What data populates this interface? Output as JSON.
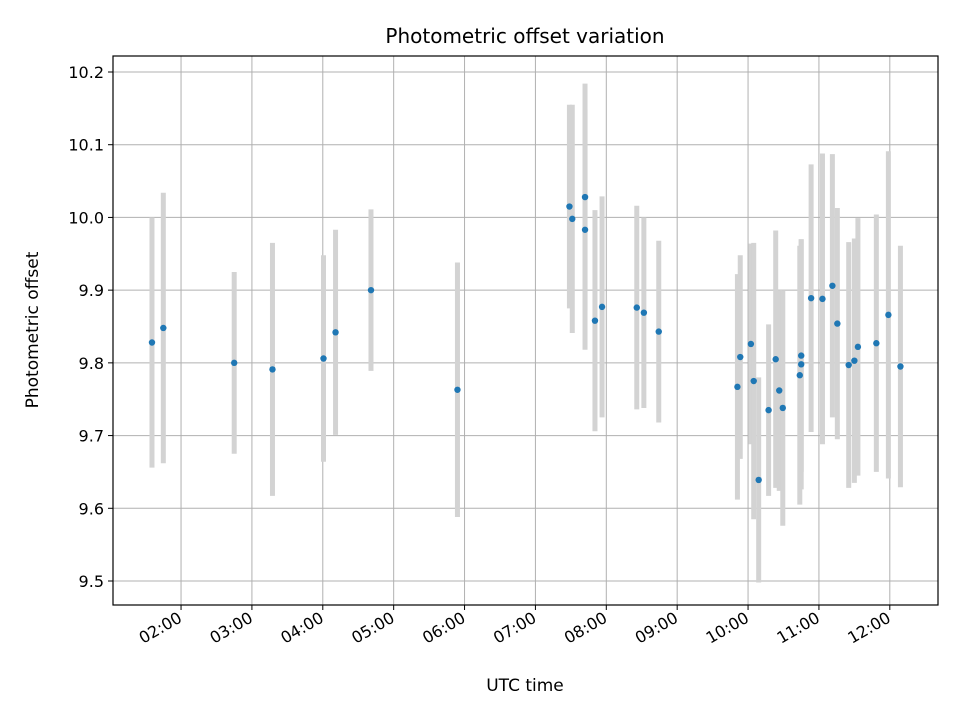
{
  "chart_data": {
    "type": "scatter",
    "title": "Photometric offset variation",
    "xlabel": "UTC time",
    "ylabel": "Photometric offset",
    "x_unit": "hours (UTC time of day)",
    "xlim": [
      1.04,
      12.68
    ],
    "ylim": [
      9.467,
      10.222
    ],
    "x_ticks": [
      2,
      3,
      4,
      5,
      6,
      7,
      8,
      9,
      10,
      11,
      12
    ],
    "x_tick_labels": [
      "02:00",
      "03:00",
      "04:00",
      "05:00",
      "06:00",
      "07:00",
      "08:00",
      "09:00",
      "10:00",
      "11:00",
      "12:00"
    ],
    "y_ticks": [
      9.5,
      9.6,
      9.7,
      9.8,
      9.9,
      10.0,
      10.1,
      10.2
    ],
    "y_tick_labels": [
      "9.5",
      "9.6",
      "9.7",
      "9.8",
      "9.9",
      "10.0",
      "10.1",
      "10.2"
    ],
    "grid": true,
    "colors": {
      "point": "#1f77b4",
      "errorbar": "#d3d3d3",
      "grid": "#b0b0b0"
    },
    "points": [
      {
        "x": 1.59,
        "y": 9.828,
        "err": 0.172
      },
      {
        "x": 1.75,
        "y": 9.848,
        "err": 0.186
      },
      {
        "x": 2.75,
        "y": 9.8,
        "err": 0.125
      },
      {
        "x": 3.29,
        "y": 9.791,
        "err": 0.174
      },
      {
        "x": 4.01,
        "y": 9.806,
        "err": 0.142
      },
      {
        "x": 4.18,
        "y": 9.842,
        "err": 0.141
      },
      {
        "x": 4.68,
        "y": 9.9,
        "err": 0.111
      },
      {
        "x": 5.9,
        "y": 9.763,
        "err": 0.175
      },
      {
        "x": 7.48,
        "y": 10.015,
        "err": 0.14
      },
      {
        "x": 7.52,
        "y": 9.998,
        "err": 0.157
      },
      {
        "x": 7.7,
        "y": 10.028,
        "err": 0.156
      },
      {
        "x": 7.7,
        "y": 9.983,
        "err": 0.165
      },
      {
        "x": 7.84,
        "y": 9.858,
        "err": 0.152
      },
      {
        "x": 7.94,
        "y": 9.877,
        "err": 0.152
      },
      {
        "x": 8.43,
        "y": 9.876,
        "err": 0.14
      },
      {
        "x": 8.53,
        "y": 9.869,
        "err": 0.131
      },
      {
        "x": 8.74,
        "y": 9.843,
        "err": 0.125
      },
      {
        "x": 9.85,
        "y": 9.767,
        "err": 0.155
      },
      {
        "x": 9.89,
        "y": 9.808,
        "err": 0.14
      },
      {
        "x": 10.04,
        "y": 9.826,
        "err": 0.138
      },
      {
        "x": 10.08,
        "y": 9.775,
        "err": 0.19
      },
      {
        "x": 10.15,
        "y": 9.639,
        "err": 0.141
      },
      {
        "x": 10.29,
        "y": 9.735,
        "err": 0.118
      },
      {
        "x": 10.39,
        "y": 9.805,
        "err": 0.177
      },
      {
        "x": 10.44,
        "y": 9.762,
        "err": 0.138
      },
      {
        "x": 10.49,
        "y": 9.738,
        "err": 0.162
      },
      {
        "x": 10.73,
        "y": 9.783,
        "err": 0.178
      },
      {
        "x": 10.75,
        "y": 9.81,
        "err": 0.16
      },
      {
        "x": 10.75,
        "y": 9.798,
        "err": 0.172
      },
      {
        "x": 10.89,
        "y": 9.889,
        "err": 0.184
      },
      {
        "x": 11.05,
        "y": 9.888,
        "err": 0.2
      },
      {
        "x": 11.19,
        "y": 9.906,
        "err": 0.181
      },
      {
        "x": 11.26,
        "y": 9.854,
        "err": 0.159
      },
      {
        "x": 11.42,
        "y": 9.797,
        "err": 0.169
      },
      {
        "x": 11.5,
        "y": 9.803,
        "err": 0.168
      },
      {
        "x": 11.55,
        "y": 9.822,
        "err": 0.177
      },
      {
        "x": 11.81,
        "y": 9.827,
        "err": 0.177
      },
      {
        "x": 11.98,
        "y": 9.866,
        "err": 0.225
      },
      {
        "x": 12.15,
        "y": 9.795,
        "err": 0.166
      }
    ]
  }
}
